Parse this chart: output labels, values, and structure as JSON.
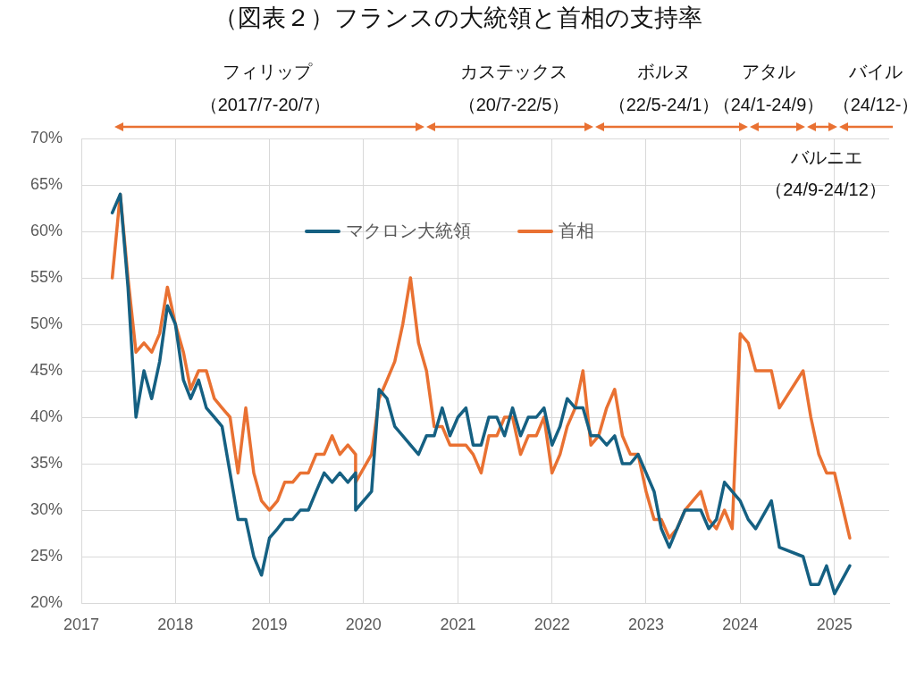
{
  "chart_data": {
    "type": "line",
    "title": "（図表２）フランスの大統領と首相の支持率",
    "x": [
      "2017-05",
      "2017-06",
      "2017-07",
      "2017-08",
      "2017-09",
      "2017-10",
      "2017-11",
      "2017-12",
      "2018-01",
      "2018-02",
      "2018-03",
      "2018-04",
      "2018-05",
      "2018-06",
      "2018-07",
      "2018-08",
      "2018-09",
      "2018-10",
      "2018-11",
      "2018-12",
      "2019-01",
      "2019-02",
      "2019-03",
      "2019-04",
      "2019-05",
      "2019-06",
      "2019-07",
      "2019-08",
      "2019-09",
      "2019-10",
      "2019-11",
      "2019-12",
      "2019-12",
      "2020-02",
      "2020-03",
      "2020-04",
      "2020-05",
      "2020-06",
      "2020-07",
      "2020-08",
      "2020-09",
      "2020-10",
      "2020-11",
      "2020-12",
      "2021-01",
      "2021-02",
      "2021-03",
      "2021-04",
      "2021-05",
      "2021-06",
      "2021-07",
      "2021-08",
      "2021-09",
      "2021-10",
      "2021-11",
      "2021-12",
      "2022-01",
      "2022-02",
      "2022-03",
      "2022-04",
      "2022-05",
      "2022-06",
      "2022-07",
      "2022-08",
      "2022-09",
      "2022-10",
      "2022-11",
      "2022-12",
      "2023-01",
      "2023-02",
      "2023-03",
      "2023-04",
      "2023-05",
      "2023-06",
      "2023-07",
      "2023-08",
      "2023-09",
      "2023-10",
      "2023-11",
      "2023-12",
      "2024-01",
      "2024-02",
      "2024-03",
      "2024-05",
      "2024-06",
      "2024-09",
      "2024-10",
      "2024-11",
      "2024-12",
      "2025-01",
      "2025-03"
    ],
    "series": [
      {
        "name": "マクロン大統領",
        "color": "#156082",
        "values": [
          62,
          64,
          54,
          40,
          45,
          42,
          46,
          52,
          50,
          44,
          42,
          44,
          41,
          40,
          39,
          34,
          29,
          29,
          25,
          23,
          27,
          28,
          29,
          29,
          30,
          30,
          32,
          34,
          33,
          34,
          33,
          34,
          30,
          32,
          43,
          42,
          39,
          38,
          37,
          36,
          38,
          38,
          41,
          38,
          40,
          41,
          37,
          37,
          40,
          40,
          38,
          41,
          38,
          40,
          40,
          41,
          37,
          39,
          42,
          41,
          41,
          38,
          38,
          37,
          38,
          35,
          35,
          36,
          34,
          32,
          28,
          26,
          28,
          30,
          30,
          30,
          28,
          29,
          33,
          32,
          31,
          29,
          28,
          31,
          26,
          25,
          22,
          22,
          24,
          21,
          24
        ]
      },
      {
        "name": "首相",
        "color": "#e97132",
        "values": [
          55,
          64,
          55,
          47,
          48,
          47,
          49,
          54,
          50,
          47,
          43,
          45,
          45,
          42,
          41,
          40,
          34,
          41,
          34,
          31,
          30,
          31,
          33,
          33,
          34,
          34,
          36,
          36,
          38,
          36,
          37,
          36,
          33,
          36,
          42,
          44,
          46,
          50,
          55,
          48,
          45,
          39,
          39,
          37,
          37,
          37,
          36,
          34,
          38,
          38,
          40,
          40,
          36,
          38,
          38,
          40,
          34,
          36,
          39,
          41,
          45,
          37,
          38,
          41,
          43,
          38,
          36,
          36,
          32,
          29,
          29,
          27,
          28,
          30,
          31,
          32,
          29,
          28,
          30,
          28,
          49,
          48,
          45,
          45,
          41,
          45,
          40,
          36,
          34,
          34,
          27
        ]
      }
    ],
    "xlim": [
      "2017-01",
      "2025-08"
    ],
    "xticks": [
      "2017",
      "2018",
      "2019",
      "2020",
      "2021",
      "2022",
      "2023",
      "2024",
      "2025"
    ],
    "ylim": [
      20,
      70
    ],
    "yticks": [
      {
        "value": 20,
        "label": "20%"
      },
      {
        "value": 25,
        "label": "25%"
      },
      {
        "value": 30,
        "label": "30%"
      },
      {
        "value": 35,
        "label": "35%"
      },
      {
        "value": 40,
        "label": "40%"
      },
      {
        "value": 45,
        "label": "45%"
      },
      {
        "value": 50,
        "label": "50%"
      },
      {
        "value": 55,
        "label": "55%"
      },
      {
        "value": 60,
        "label": "60%"
      },
      {
        "value": 65,
        "label": "65%"
      },
      {
        "value": 70,
        "label": "70%"
      }
    ],
    "grid": true,
    "legend": "top",
    "annotations": [
      "フィリップ",
      "（2017/7-20/7）",
      "カステックス",
      "（20/7-22/5）",
      "ボルヌ",
      "（22/5-24/1）",
      "アタル",
      "（24/1-24/9）",
      "バルニエ",
      "（24/9-24/12）",
      "バイル",
      "（24/12-）"
    ]
  }
}
